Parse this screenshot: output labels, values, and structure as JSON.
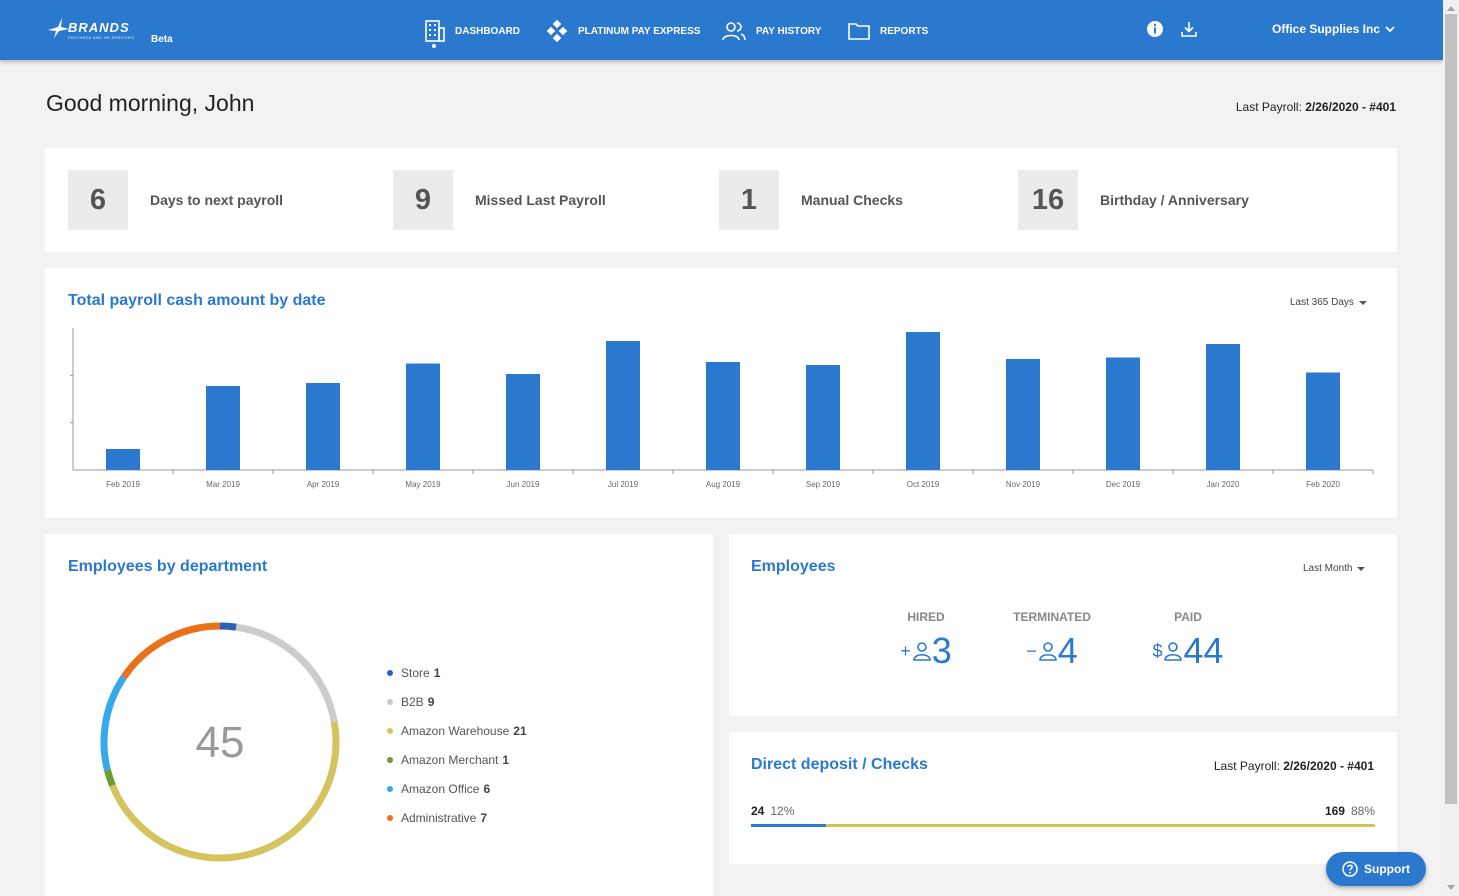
{
  "header": {
    "logo_text": "BRANDS",
    "logo_subtext": "PAYCHECK AND HR SERVICES",
    "beta": "Beta",
    "nav": [
      {
        "label": "DASHBOARD",
        "icon": "building-icon",
        "active": true
      },
      {
        "label": "PLATINUM PAY EXPRESS",
        "icon": "diamond-grid-icon"
      },
      {
        "label": "PAY HISTORY",
        "icon": "users-icon"
      },
      {
        "label": "REPORTS",
        "icon": "folder-icon"
      }
    ],
    "company": "Office Supplies Inc"
  },
  "greeting": "Good morning, John",
  "last_payroll": {
    "label": "Last Payroll:",
    "value": "2/26/2020 - #401"
  },
  "stats": [
    {
      "value": "6",
      "label": "Days to next payroll"
    },
    {
      "value": "9",
      "label": "Missed Last Payroll"
    },
    {
      "value": "1",
      "label": "Manual Checks"
    },
    {
      "value": "16",
      "label": "Birthday / Anniversary"
    }
  ],
  "payroll_chart": {
    "title": "Total payroll cash amount by date",
    "filter": "Last 365 Days"
  },
  "chart_data": {
    "type": "bar",
    "title": "Total payroll cash amount by date",
    "categories": [
      "Feb 2019",
      "Mar 2019",
      "Apr 2019",
      "May 2019",
      "Jun 2019",
      "Jul 2019",
      "Aug 2019",
      "Sep 2019",
      "Oct 2019",
      "Nov 2019",
      "Dec 2019",
      "Jan 2020",
      "Feb 2020"
    ],
    "values": [
      14,
      56,
      58,
      71,
      64,
      86,
      72,
      70,
      92,
      74,
      75,
      84,
      65
    ],
    "ylim": [
      0,
      100
    ],
    "color": "#2b79ce",
    "grid": false
  },
  "departments": {
    "title": "Employees by department",
    "total": "45",
    "items": [
      {
        "name": "Store",
        "count": "1",
        "value": 1,
        "color": "#2b62b8"
      },
      {
        "name": "B2B",
        "count": "9",
        "value": 9,
        "color": "#cccccc"
      },
      {
        "name": "Amazon Warehouse",
        "count": "21",
        "value": 21,
        "color": "#d5c45e"
      },
      {
        "name": "Amazon Merchant",
        "count": "1",
        "value": 1,
        "color": "#6e9b2e"
      },
      {
        "name": "Amazon Office",
        "count": "6",
        "value": 6,
        "color": "#35aaea"
      },
      {
        "name": "Administrative",
        "count": "7",
        "value": 7,
        "color": "#e8711a"
      }
    ]
  },
  "employees": {
    "title": "Employees",
    "filter": "Last Month",
    "hired": {
      "label": "HIRED",
      "sign": "+",
      "value": "3"
    },
    "terminated": {
      "label": "TERMINATED",
      "sign": "−",
      "value": "4"
    },
    "paid": {
      "label": "PAID",
      "sign": "$",
      "value": "44"
    }
  },
  "direct_deposit": {
    "title": "Direct deposit / Checks",
    "last_label": "Last Payroll:",
    "last_value": "2/26/2020 - #401",
    "left_count": "24",
    "left_pct": "12%",
    "right_count": "169",
    "right_pct": "88%",
    "fill_fraction": 0.12
  },
  "support": {
    "label": "Support"
  }
}
